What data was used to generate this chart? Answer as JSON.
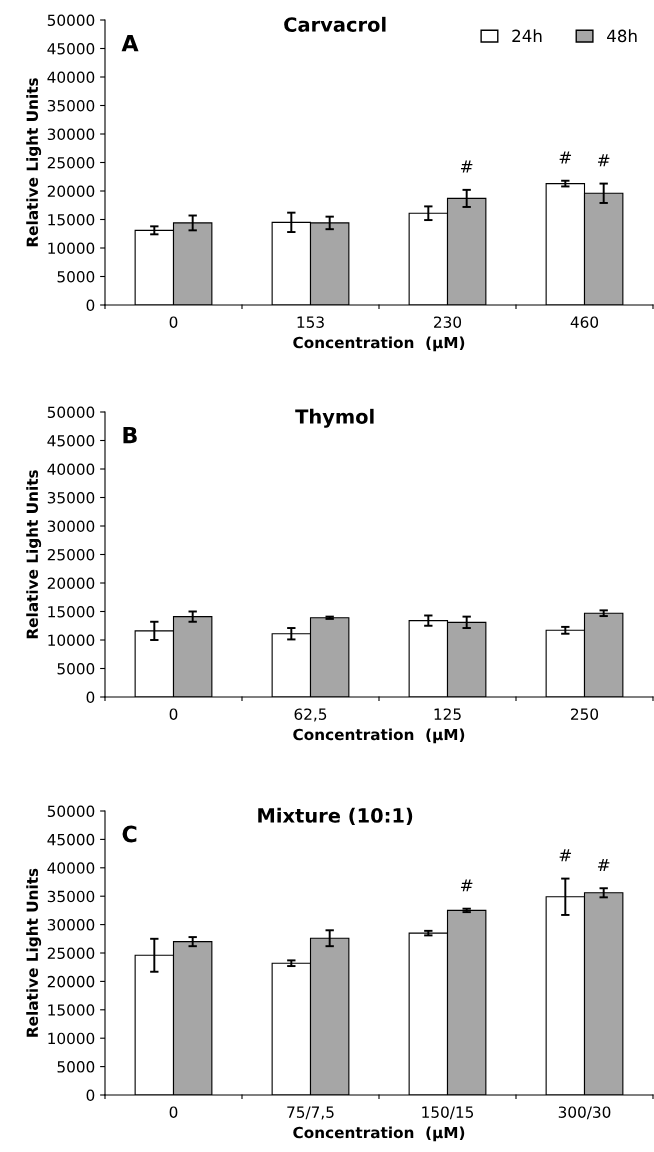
{
  "chart_data": [
    {
      "type": "bar",
      "title": "Carvacrol",
      "xlabel": "Concentration  (µM)",
      "ylabel": "Relative Light Units",
      "categories": [
        "0",
        "153",
        "230",
        "460"
      ],
      "series": [
        {
          "name": "24h",
          "color": "#ffffff",
          "values": [
            13100,
            14500,
            16100,
            21300
          ],
          "errors": [
            700,
            1700,
            1200,
            500
          ]
        },
        {
          "name": "48h",
          "color": "#a6a6a6",
          "values": [
            14400,
            14400,
            18700,
            19600
          ],
          "errors": [
            1300,
            1100,
            1500,
            1700
          ]
        }
      ],
      "ylim": [
        0,
        50000
      ],
      "yticks": [
        0,
        5000,
        10000,
        15000,
        20000,
        25000,
        30000,
        35000,
        40000,
        45000,
        50000
      ],
      "legend": "top right",
      "grid": false,
      "annotations": [
        "A",
        {
          "text": "#",
          "x": "230",
          "y": 18700
        },
        {
          "text": "#",
          "x": "460",
          "y": 21300
        },
        {
          "text": "#",
          "x": "460",
          "y": 19600
        }
      ]
    },
    {
      "type": "bar",
      "title": "Thymol",
      "xlabel": "Concentration  (µM)",
      "ylabel": "Relative Light Units",
      "categories": [
        "0",
        "62,5",
        "125",
        "250"
      ],
      "series": [
        {
          "color": "#ffffff",
          "values": [
            11600,
            11100,
            13400,
            11700
          ],
          "errors": [
            1600,
            1000,
            900,
            600
          ]
        },
        {
          "color": "#a6a6a6",
          "values": [
            14100,
            13900,
            13100,
            14700
          ],
          "errors": [
            900,
            200,
            1000,
            500
          ]
        }
      ],
      "ylim": [
        0,
        50000
      ],
      "yticks": [
        0,
        5000,
        10000,
        15000,
        20000,
        25000,
        30000,
        35000,
        40000,
        45000,
        50000
      ],
      "legend": false,
      "grid": false,
      "annotations": [
        "B"
      ]
    },
    {
      "type": "bar",
      "title": "Mixture (10:1)",
      "xlabel": "Concentration  (µM)",
      "ylabel": "Relative Light Units",
      "categories": [
        "0",
        "75/7,5",
        "150/15",
        "300/30"
      ],
      "series": [
        {
          "color": "#ffffff",
          "values": [
            24600,
            23200,
            28500,
            34900
          ],
          "errors": [
            2900,
            500,
            400,
            3200
          ]
        },
        {
          "color": "#a6a6a6",
          "values": [
            27000,
            27600,
            32500,
            35600
          ],
          "errors": [
            800,
            1400,
            300,
            800
          ]
        }
      ],
      "ylim": [
        0,
        50000
      ],
      "yticks": [
        0,
        5000,
        10000,
        15000,
        20000,
        25000,
        30000,
        35000,
        40000,
        45000,
        50000
      ],
      "legend": false,
      "grid": false,
      "annotations": [
        "C",
        {
          "text": "#",
          "x": "150/15",
          "y": 32500
        },
        {
          "text": "#",
          "x": "300/30",
          "y": 34900
        },
        {
          "text": "#",
          "x": "300/30",
          "y": 35600
        }
      ]
    }
  ]
}
